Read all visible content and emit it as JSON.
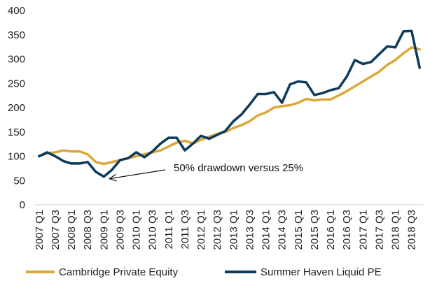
{
  "chart_data": {
    "type": "line",
    "title": "",
    "xlabel": "",
    "ylabel": "",
    "ylim": [
      0,
      400
    ],
    "yticks": [
      0,
      50,
      100,
      150,
      200,
      250,
      300,
      350,
      400
    ],
    "grid": false,
    "legend_position": "bottom",
    "x": [
      "2007 Q1",
      "2007 Q2",
      "2007 Q3",
      "2007 Q4",
      "2008 Q1",
      "2008 Q2",
      "2008 Q3",
      "2008 Q4",
      "2009 Q1",
      "2009 Q2",
      "2009 Q3",
      "2009 Q4",
      "2010 Q1",
      "2010 Q2",
      "2010 Q3",
      "2010 Q4",
      "2011 Q1",
      "2011 Q2",
      "2011 Q3",
      "2011 Q4",
      "2012 Q1",
      "2012 Q2",
      "2012 Q3",
      "2012 Q4",
      "2013 Q1",
      "2013 Q2",
      "2013 Q3",
      "2013 Q4",
      "2014 Q1",
      "2014 Q2",
      "2014 Q3",
      "2014 Q4",
      "2015 Q1",
      "2015 Q2",
      "2015 Q3",
      "2015 Q4",
      "2016 Q1",
      "2016 Q2",
      "2016 Q3",
      "2016 Q4",
      "2017 Q1",
      "2017 Q2",
      "2017 Q3",
      "2017 Q4",
      "2018 Q1",
      "2018 Q2",
      "2018 Q3",
      "2018 Q4"
    ],
    "x_tick_labels": [
      "2007 Q1",
      "2007 Q3",
      "2008 Q1",
      "2008 Q3",
      "2009 Q1",
      "2009 Q3",
      "2010 Q1",
      "2010 Q3",
      "2011 Q1",
      "2011 Q3",
      "2012 Q1",
      "2012 Q3",
      "2013 Q1",
      "2013 Q3",
      "2014 Q1",
      "2014 Q3",
      "2015 Q1",
      "2015 Q3",
      "2016 Q1",
      "2016 Q3",
      "2017 Q1",
      "2017 Q3",
      "2018 Q1",
      "2018 Q3"
    ],
    "series": [
      {
        "name": "Cambridge Private Equity",
        "color": "#d9a93a",
        "values": [
          100,
          106,
          108,
          112,
          110,
          110,
          104,
          88,
          84,
          88,
          92,
          96,
          100,
          104,
          108,
          112,
          120,
          128,
          132,
          126,
          134,
          140,
          146,
          150,
          158,
          164,
          172,
          184,
          190,
          200,
          203,
          205,
          210,
          218,
          215,
          217,
          217,
          225,
          234,
          244,
          254,
          264,
          274,
          288,
          298,
          312,
          324,
          320
        ]
      },
      {
        "name": "Summer Haven Liquid PE",
        "color": "#0e3a5c",
        "values": [
          100,
          108,
          100,
          90,
          85,
          85,
          88,
          68,
          58,
          72,
          92,
          96,
          108,
          98,
          110,
          126,
          138,
          138,
          112,
          126,
          142,
          136,
          144,
          152,
          172,
          186,
          206,
          228,
          228,
          232,
          210,
          248,
          254,
          252,
          226,
          230,
          236,
          240,
          264,
          298,
          290,
          294,
          310,
          326,
          324,
          357,
          358,
          282
        ]
      }
    ],
    "annotations": [
      {
        "text": "50% drawdown versus 25%",
        "points_to": "2009 Q1"
      }
    ]
  }
}
